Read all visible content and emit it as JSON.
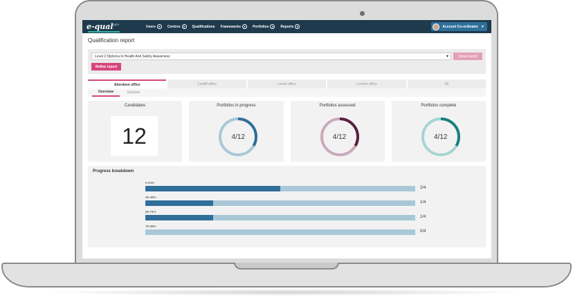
{
  "nav": {
    "logo_text": "e-qual",
    "logo_pro": "pro",
    "menu": [
      {
        "label": "Users",
        "has_dropdown": true
      },
      {
        "label": "Centres",
        "has_dropdown": true
      },
      {
        "label": "Qualifications",
        "has_dropdown": false
      },
      {
        "label": "Frameworks",
        "has_dropdown": true
      },
      {
        "label": "Portfolios",
        "has_dropdown": true
      },
      {
        "label": "Reports",
        "has_dropdown": true
      }
    ],
    "account_label": "Account Co-ordinator",
    "account_caret": "▼",
    "chevron_glyph": "▾"
  },
  "page": {
    "title": "Qualification report"
  },
  "filter": {
    "qualification_value": "Level 2 Diploma In Health And Safety Awareness",
    "caret": "▾",
    "show_report_label": "Show report",
    "refine_label": "Refine report"
  },
  "office_tabs": [
    {
      "label": "Aberdeen office",
      "active": true
    },
    {
      "label": "Cardiff office",
      "active": false
    },
    {
      "label": "Leeds office",
      "active": false
    },
    {
      "label": "London office",
      "active": false
    },
    {
      "label": "All",
      "active": false
    }
  ],
  "view_tabs": [
    {
      "label": "Overview",
      "active": true
    },
    {
      "label": "Detailed",
      "active": false
    }
  ],
  "cards": {
    "candidates": {
      "title": "Candidates",
      "value": "12"
    },
    "in_progress": {
      "title": "Portfolios in progress",
      "value": "4/12",
      "fraction": 0.3333,
      "color": "#2f6f9a",
      "track": "#a9c8d7"
    },
    "assessed": {
      "title": "Portfolios assessed",
      "value": "4/12",
      "fraction": 0.3333,
      "color": "#5b1f3f",
      "track": "#c9a9bb"
    },
    "complete": {
      "title": "Portfolios complete",
      "value": "4/12",
      "fraction": 0.3333,
      "color": "#17807d",
      "track": "#a6d4d2"
    }
  },
  "breakdown": {
    "title": "Progress breakdown",
    "rows": [
      {
        "label": "0-24%",
        "count": "2/4",
        "fraction": 0.5
      },
      {
        "label": "25-49%",
        "count": "1/4",
        "fraction": 0.25
      },
      {
        "label": "50-74%",
        "count": "1/4",
        "fraction": 0.25
      },
      {
        "label": "75-99%",
        "count": "0/4",
        "fraction": 0
      }
    ]
  },
  "colors": {
    "nav_bg": "#1f3a4d",
    "accent_pink": "#d6457c",
    "bar_fill": "#2f6f9a",
    "bar_track": "#a9c8d7"
  }
}
